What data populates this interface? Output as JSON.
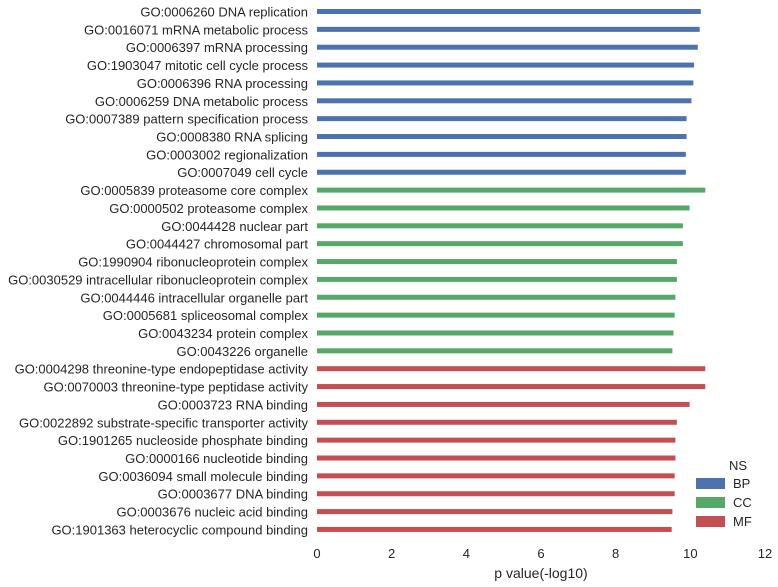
{
  "chart_data": {
    "type": "bar",
    "orientation": "horizontal",
    "categories": [
      "GO:0006260 DNA replication",
      "GO:0016071 mRNA metabolic process",
      "GO:0006397 mRNA processing",
      "GO:1903047 mitotic cell cycle process",
      "GO:0006396 RNA processing",
      "GO:0006259 DNA metabolic process",
      "GO:0007389 pattern specification process",
      "GO:0008380 RNA splicing",
      "GO:0003002 regionalization",
      "GO:0007049 cell cycle",
      "GO:0005839 proteasome core complex",
      "GO:0000502 proteasome complex",
      "GO:0044428 nuclear part",
      "GO:0044427 chromosomal part",
      "GO:1990904 ribonucleoprotein complex",
      "GO:0030529 intracellular ribonucleoprotein complex",
      "GO:0044446 intracellular organelle part",
      "GO:0005681 spliceosomal complex",
      "GO:0043234 protein complex",
      "GO:0043226 organelle",
      "GO:0004298 threonine-type endopeptidase activity",
      "GO:0070003 threonine-type peptidase activity",
      "GO:0003723 RNA binding",
      "GO:0022892 substrate-specific transporter activity",
      "GO:1901265 nucleoside phosphate binding",
      "GO:0000166 nucleotide binding",
      "GO:0036094 small molecule binding",
      "GO:0003677 DNA binding",
      "GO:0003676 nucleic acid binding",
      "GO:1901363 heterocyclic compound binding"
    ],
    "values": [
      10.28,
      10.25,
      10.2,
      10.1,
      10.08,
      10.03,
      9.9,
      9.9,
      9.88,
      9.88,
      10.4,
      9.98,
      9.8,
      9.8,
      9.64,
      9.64,
      9.6,
      9.58,
      9.55,
      9.52,
      10.4,
      10.4,
      9.98,
      9.64,
      9.6,
      9.6,
      9.58,
      9.58,
      9.52,
      9.5
    ],
    "groups": [
      "BP",
      "BP",
      "BP",
      "BP",
      "BP",
      "BP",
      "BP",
      "BP",
      "BP",
      "BP",
      "CC",
      "CC",
      "CC",
      "CC",
      "CC",
      "CC",
      "CC",
      "CC",
      "CC",
      "CC",
      "MF",
      "MF",
      "MF",
      "MF",
      "MF",
      "MF",
      "MF",
      "MF",
      "MF",
      "MF"
    ],
    "xlabel": "p value(-log10)",
    "ylabel": "",
    "xlim": [
      0,
      12
    ],
    "xticks": [
      "0",
      "2",
      "4",
      "6",
      "8",
      "10",
      "12"
    ],
    "grid": false,
    "legend": {
      "title": "NS",
      "placement": "bottom-right",
      "entries": [
        {
          "name": "BP",
          "color": "#4c72b0"
        },
        {
          "name": "CC",
          "color": "#55a868"
        },
        {
          "name": "MF",
          "color": "#c44e52"
        }
      ]
    }
  }
}
